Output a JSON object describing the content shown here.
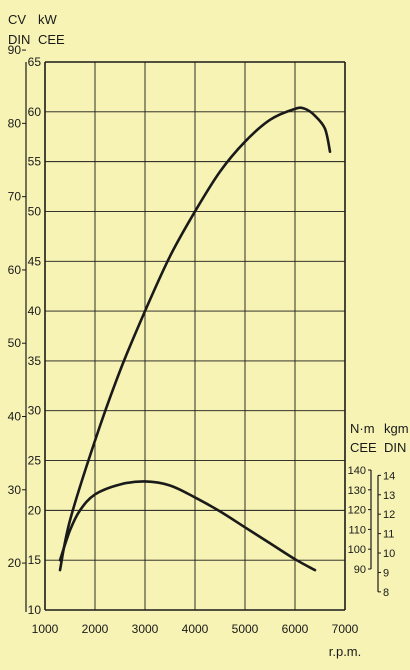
{
  "colors": {
    "background": "#f6f3b4",
    "ink": "#1a1a1a"
  },
  "chart_data": {
    "type": "line",
    "xlabel": "r.p.m.",
    "x_ticks": [
      1000,
      2000,
      3000,
      4000,
      5000,
      6000,
      7000
    ],
    "xlim": [
      1000,
      7000
    ],
    "grid": true,
    "axes": {
      "power_kw": {
        "unit_label": "kW",
        "standard_label": "CEE",
        "ticks": [
          10,
          15,
          20,
          25,
          30,
          35,
          40,
          45,
          50,
          55,
          60,
          65
        ],
        "range": [
          10,
          65
        ]
      },
      "power_cv": {
        "unit_label": "CV",
        "standard_label": "DIN",
        "ticks": [
          20,
          30,
          40,
          50,
          60,
          70,
          80,
          90
        ]
      },
      "torque_nm": {
        "unit_label": "N·m",
        "standard_label": "CEE",
        "ticks": [
          90,
          100,
          110,
          120,
          130,
          140
        ]
      },
      "torque_kgm": {
        "unit_label": "kgm",
        "standard_label": "DIN",
        "ticks": [
          8,
          9,
          10,
          11,
          12,
          13,
          14
        ]
      }
    },
    "series": [
      {
        "axis": "power_kw",
        "x": [
          1300,
          1500,
          2000,
          2500,
          3000,
          3500,
          4000,
          4500,
          5000,
          5500,
          6000,
          6200,
          6400,
          6600,
          6700
        ],
        "y": [
          14,
          19,
          27,
          34,
          40,
          45.5,
          50,
          54,
          57,
          59.2,
          60.3,
          60.3,
          59.6,
          58.3,
          56
        ]
      },
      {
        "axis": "power_kw",
        "x": [
          1300,
          1500,
          1700,
          2000,
          2500,
          3000,
          3500,
          4000,
          4500,
          5000,
          5500,
          6000,
          6400
        ],
        "y": [
          15,
          18,
          20,
          21.6,
          22.6,
          22.9,
          22.5,
          21.3,
          19.9,
          18.3,
          16.7,
          15.1,
          14
        ]
      }
    ]
  }
}
